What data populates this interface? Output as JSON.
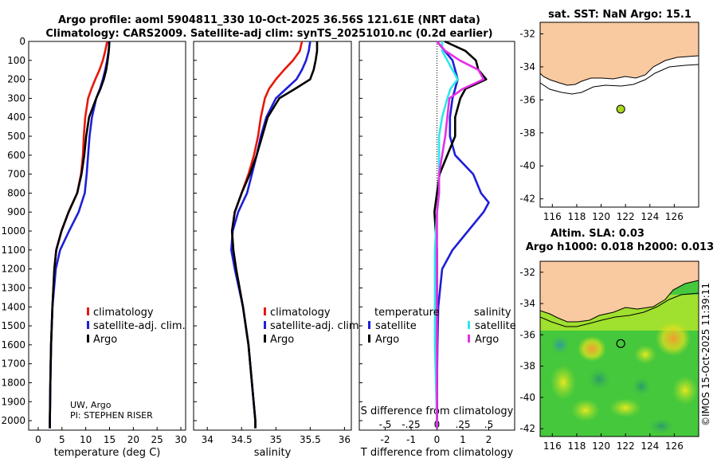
{
  "header": {
    "line1": "Argo profile: aoml 5904811_330 10-Oct-2025 36.56S 121.61E (NRT data)",
    "line2": "Climatology: CARS2009. Satellite-adj clim: synTS_20251010.nc (0.2d earlier)"
  },
  "colors": {
    "argo": "#000000",
    "clim": "#e8170b",
    "sat": "#1d1fd8",
    "sat_cyan": "#2ee6ea",
    "sat_mag": "#e62ee6",
    "land": "#f9c9a0",
    "sea_green": "#4ccc3a"
  },
  "notes": {
    "source": "UW, Argo",
    "pi": "PI: STEPHEN RISER",
    "watermark": "©IMOS 15-Oct-2025 11:39:11"
  },
  "chart_data": [
    {
      "type": "line",
      "id": "temperature",
      "xlabel": "temperature (deg C)",
      "ylabel": "",
      "xlim": [
        -2,
        31
      ],
      "ylim": [
        2050,
        0
      ],
      "xticks": [
        0,
        5,
        10,
        15,
        20,
        25,
        30
      ],
      "yticks": [
        0,
        100,
        200,
        300,
        400,
        500,
        600,
        700,
        800,
        900,
        1000,
        1100,
        1200,
        1300,
        1400,
        1500,
        1600,
        1700,
        1800,
        1900,
        2000
      ],
      "legend": [
        "climatology",
        "satellite-adj. clim.",
        "Argo"
      ],
      "series": [
        {
          "name": "Argo",
          "color": "#000000",
          "depth": [
            0,
            30,
            60,
            100,
            150,
            200,
            250,
            300,
            400,
            500,
            600,
            700,
            800,
            900,
            1000,
            1100,
            1200,
            1400,
            1600,
            1800,
            2000,
            2040
          ],
          "values": [
            14.9,
            14.9,
            14.8,
            14.6,
            14.3,
            13.8,
            13.1,
            12.2,
            10.7,
            10.1,
            9.7,
            9.1,
            8.2,
            6.4,
            4.9,
            3.8,
            3.4,
            3.0,
            2.7,
            2.55,
            2.45,
            2.45
          ]
        },
        {
          "name": "climatology",
          "color": "#e8170b",
          "depth": [
            0,
            50,
            100,
            150,
            200,
            250,
            300,
            400,
            500,
            600,
            700,
            800,
            900,
            1000,
            1100,
            1200,
            1400,
            1600,
            1800,
            2000,
            2040
          ],
          "values": [
            14.5,
            14.1,
            13.6,
            12.9,
            12.0,
            11.2,
            10.5,
            9.9,
            9.6,
            9.4,
            9.0,
            8.2,
            6.4,
            4.9,
            3.8,
            3.4,
            3.0,
            2.7,
            2.55,
            2.45,
            2.45
          ]
        },
        {
          "name": "satellite-adj. clim.",
          "color": "#1d1fd8",
          "depth": [
            0,
            50,
            100,
            150,
            200,
            250,
            300,
            400,
            500,
            600,
            700,
            800,
            900,
            1000,
            1100,
            1200,
            1400,
            1600,
            1800,
            2000,
            2040
          ],
          "values": [
            15.0,
            14.8,
            14.5,
            14.1,
            13.6,
            13.0,
            12.2,
            11.3,
            10.8,
            10.5,
            10.2,
            9.8,
            8.5,
            6.5,
            4.6,
            3.7,
            3.0,
            2.7,
            2.55,
            2.45,
            2.45
          ]
        }
      ]
    },
    {
      "type": "line",
      "id": "salinity",
      "xlabel": "salinity",
      "ylabel": "",
      "xlim": [
        33.8,
        36.1
      ],
      "ylim": [
        2050,
        0
      ],
      "xticks": [
        34,
        34.5,
        35,
        35.5,
        36
      ],
      "legend": [
        "climatology",
        "satellite-adj. clim.",
        "Argo"
      ],
      "series": [
        {
          "name": "Argo",
          "color": "#000000",
          "depth": [
            0,
            50,
            100,
            150,
            200,
            250,
            300,
            400,
            500,
            600,
            700,
            800,
            900,
            1000,
            1100,
            1200,
            1400,
            1600,
            1800,
            2000,
            2040
          ],
          "values": [
            35.6,
            35.6,
            35.58,
            35.55,
            35.5,
            35.28,
            35.05,
            34.88,
            34.8,
            34.72,
            34.62,
            34.5,
            34.4,
            34.36,
            34.38,
            34.42,
            34.52,
            34.6,
            34.65,
            34.7,
            34.7
          ]
        },
        {
          "name": "climatology",
          "color": "#e8170b",
          "depth": [
            0,
            50,
            100,
            150,
            200,
            250,
            300,
            400,
            500,
            600,
            700,
            800,
            900,
            1000,
            1100,
            1200,
            1400,
            1600,
            1800,
            2000,
            2040
          ],
          "values": [
            35.38,
            35.35,
            35.25,
            35.12,
            35.0,
            34.9,
            34.84,
            34.78,
            34.74,
            34.68,
            34.6,
            34.5,
            34.4,
            34.36,
            34.38,
            34.42,
            34.52,
            34.6,
            34.65,
            34.7,
            34.7
          ]
        },
        {
          "name": "satellite-adj. clim.",
          "color": "#1d1fd8",
          "depth": [
            0,
            50,
            100,
            150,
            200,
            250,
            300,
            400,
            500,
            600,
            700,
            800,
            900,
            1000,
            1100,
            1200,
            1400,
            1600,
            1800,
            2000,
            2040
          ],
          "values": [
            35.5,
            35.48,
            35.44,
            35.38,
            35.3,
            35.15,
            35.0,
            34.86,
            34.78,
            34.72,
            34.65,
            34.58,
            34.45,
            34.37,
            34.35,
            34.4,
            34.52,
            34.6,
            34.65,
            34.7,
            34.7
          ]
        }
      ]
    },
    {
      "type": "line",
      "id": "differences",
      "xlabel": "T difference from climatology",
      "x2label": "S difference from climatology",
      "xlim": [
        -3,
        3
      ],
      "x2lim": [
        -0.75,
        0.75
      ],
      "ylim": [
        2050,
        0
      ],
      "xticks": [
        -2,
        -1,
        0,
        1,
        2
      ],
      "x2ticks": [
        -0.5,
        -0.25,
        0,
        0.25,
        0.5
      ],
      "legend_temperature": {
        "title": "temperature",
        "items": [
          "satellite",
          "Argo"
        ]
      },
      "legend_salinity": {
        "title": "salinity",
        "items": [
          "satellite",
          "Argo"
        ]
      },
      "series": [
        {
          "name": "T satellite",
          "color": "#1d1fd8",
          "depth": [
            0,
            50,
            100,
            150,
            200,
            250,
            300,
            400,
            500,
            600,
            700,
            800,
            850,
            900,
            1000,
            1100,
            1200,
            1400,
            1600,
            1800,
            2000,
            2040
          ],
          "values": [
            0.0,
            0.3,
            0.6,
            0.7,
            0.8,
            0.7,
            0.6,
            0.5,
            0.5,
            0.7,
            1.4,
            1.7,
            2.0,
            1.8,
            1.2,
            0.6,
            0.2,
            0.05,
            0.02,
            0.0,
            0.0,
            0.0
          ]
        },
        {
          "name": "T Argo",
          "color": "#000000",
          "depth": [
            0,
            50,
            100,
            150,
            200,
            250,
            300,
            400,
            500,
            600,
            700,
            800,
            900,
            1000,
            1100,
            1200,
            1400,
            1600,
            1800,
            2000,
            2040
          ],
          "values": [
            0.3,
            1.1,
            1.5,
            1.6,
            1.9,
            1.1,
            0.9,
            0.7,
            0.7,
            0.4,
            0.1,
            0.0,
            -0.1,
            -0.05,
            0.0,
            0.0,
            0.0,
            0.0,
            0.0,
            0.0,
            0.0
          ]
        },
        {
          "name": "S satellite",
          "color": "#2ee6ea",
          "depth": [
            0,
            50,
            100,
            150,
            200,
            250,
            300,
            400,
            500,
            600,
            700,
            800,
            900,
            1000,
            1100,
            1200,
            1400,
            1600,
            1800,
            2000,
            2040
          ],
          "values": [
            0.05,
            0.05,
            0.1,
            0.15,
            0.2,
            0.13,
            0.1,
            0.05,
            0.02,
            0.02,
            0.02,
            0.02,
            0.0,
            -0.01,
            -0.02,
            -0.02,
            -0.02,
            -0.02,
            -0.01,
            0.0,
            0.0
          ]
        },
        {
          "name": "S Argo",
          "color": "#e62ee6",
          "depth": [
            0,
            50,
            100,
            150,
            200,
            250,
            300,
            400,
            500,
            600,
            700,
            800,
            900,
            1000,
            1100,
            1200,
            1400,
            1600,
            1800,
            2000,
            2040
          ],
          "values": [
            0.0,
            0.08,
            0.22,
            0.4,
            0.45,
            0.25,
            0.12,
            0.1,
            0.08,
            0.05,
            0.02,
            0.02,
            0.0,
            0.0,
            0.0,
            0.0,
            0.0,
            0.0,
            0.0,
            0.0,
            0.0
          ]
        }
      ]
    },
    {
      "type": "map",
      "id": "sst-map",
      "title": "sat. SST: NaN Argo: 15.1",
      "xlim": [
        115,
        128
      ],
      "ylim": [
        -42.5,
        -31.3
      ],
      "xticks": [
        116,
        118,
        120,
        122,
        124,
        126
      ],
      "yticks": [
        -32,
        -34,
        -36,
        -38,
        -40,
        -42
      ],
      "argo_position": {
        "lon": 121.61,
        "lat": -36.56
      }
    },
    {
      "type": "map",
      "id": "sla-map",
      "title": "Altim. SLA: 0.03",
      "subtitle": "Argo h1000: 0.018 h2000: 0.013",
      "xlim": [
        115,
        128
      ],
      "ylim": [
        -42.5,
        -31.3
      ],
      "xticks": [
        116,
        118,
        120,
        122,
        124,
        126
      ],
      "yticks": [
        -32,
        -34,
        -36,
        -38,
        -40,
        -42
      ],
      "argo_position": {
        "lon": 121.61,
        "lat": -36.56
      }
    }
  ]
}
